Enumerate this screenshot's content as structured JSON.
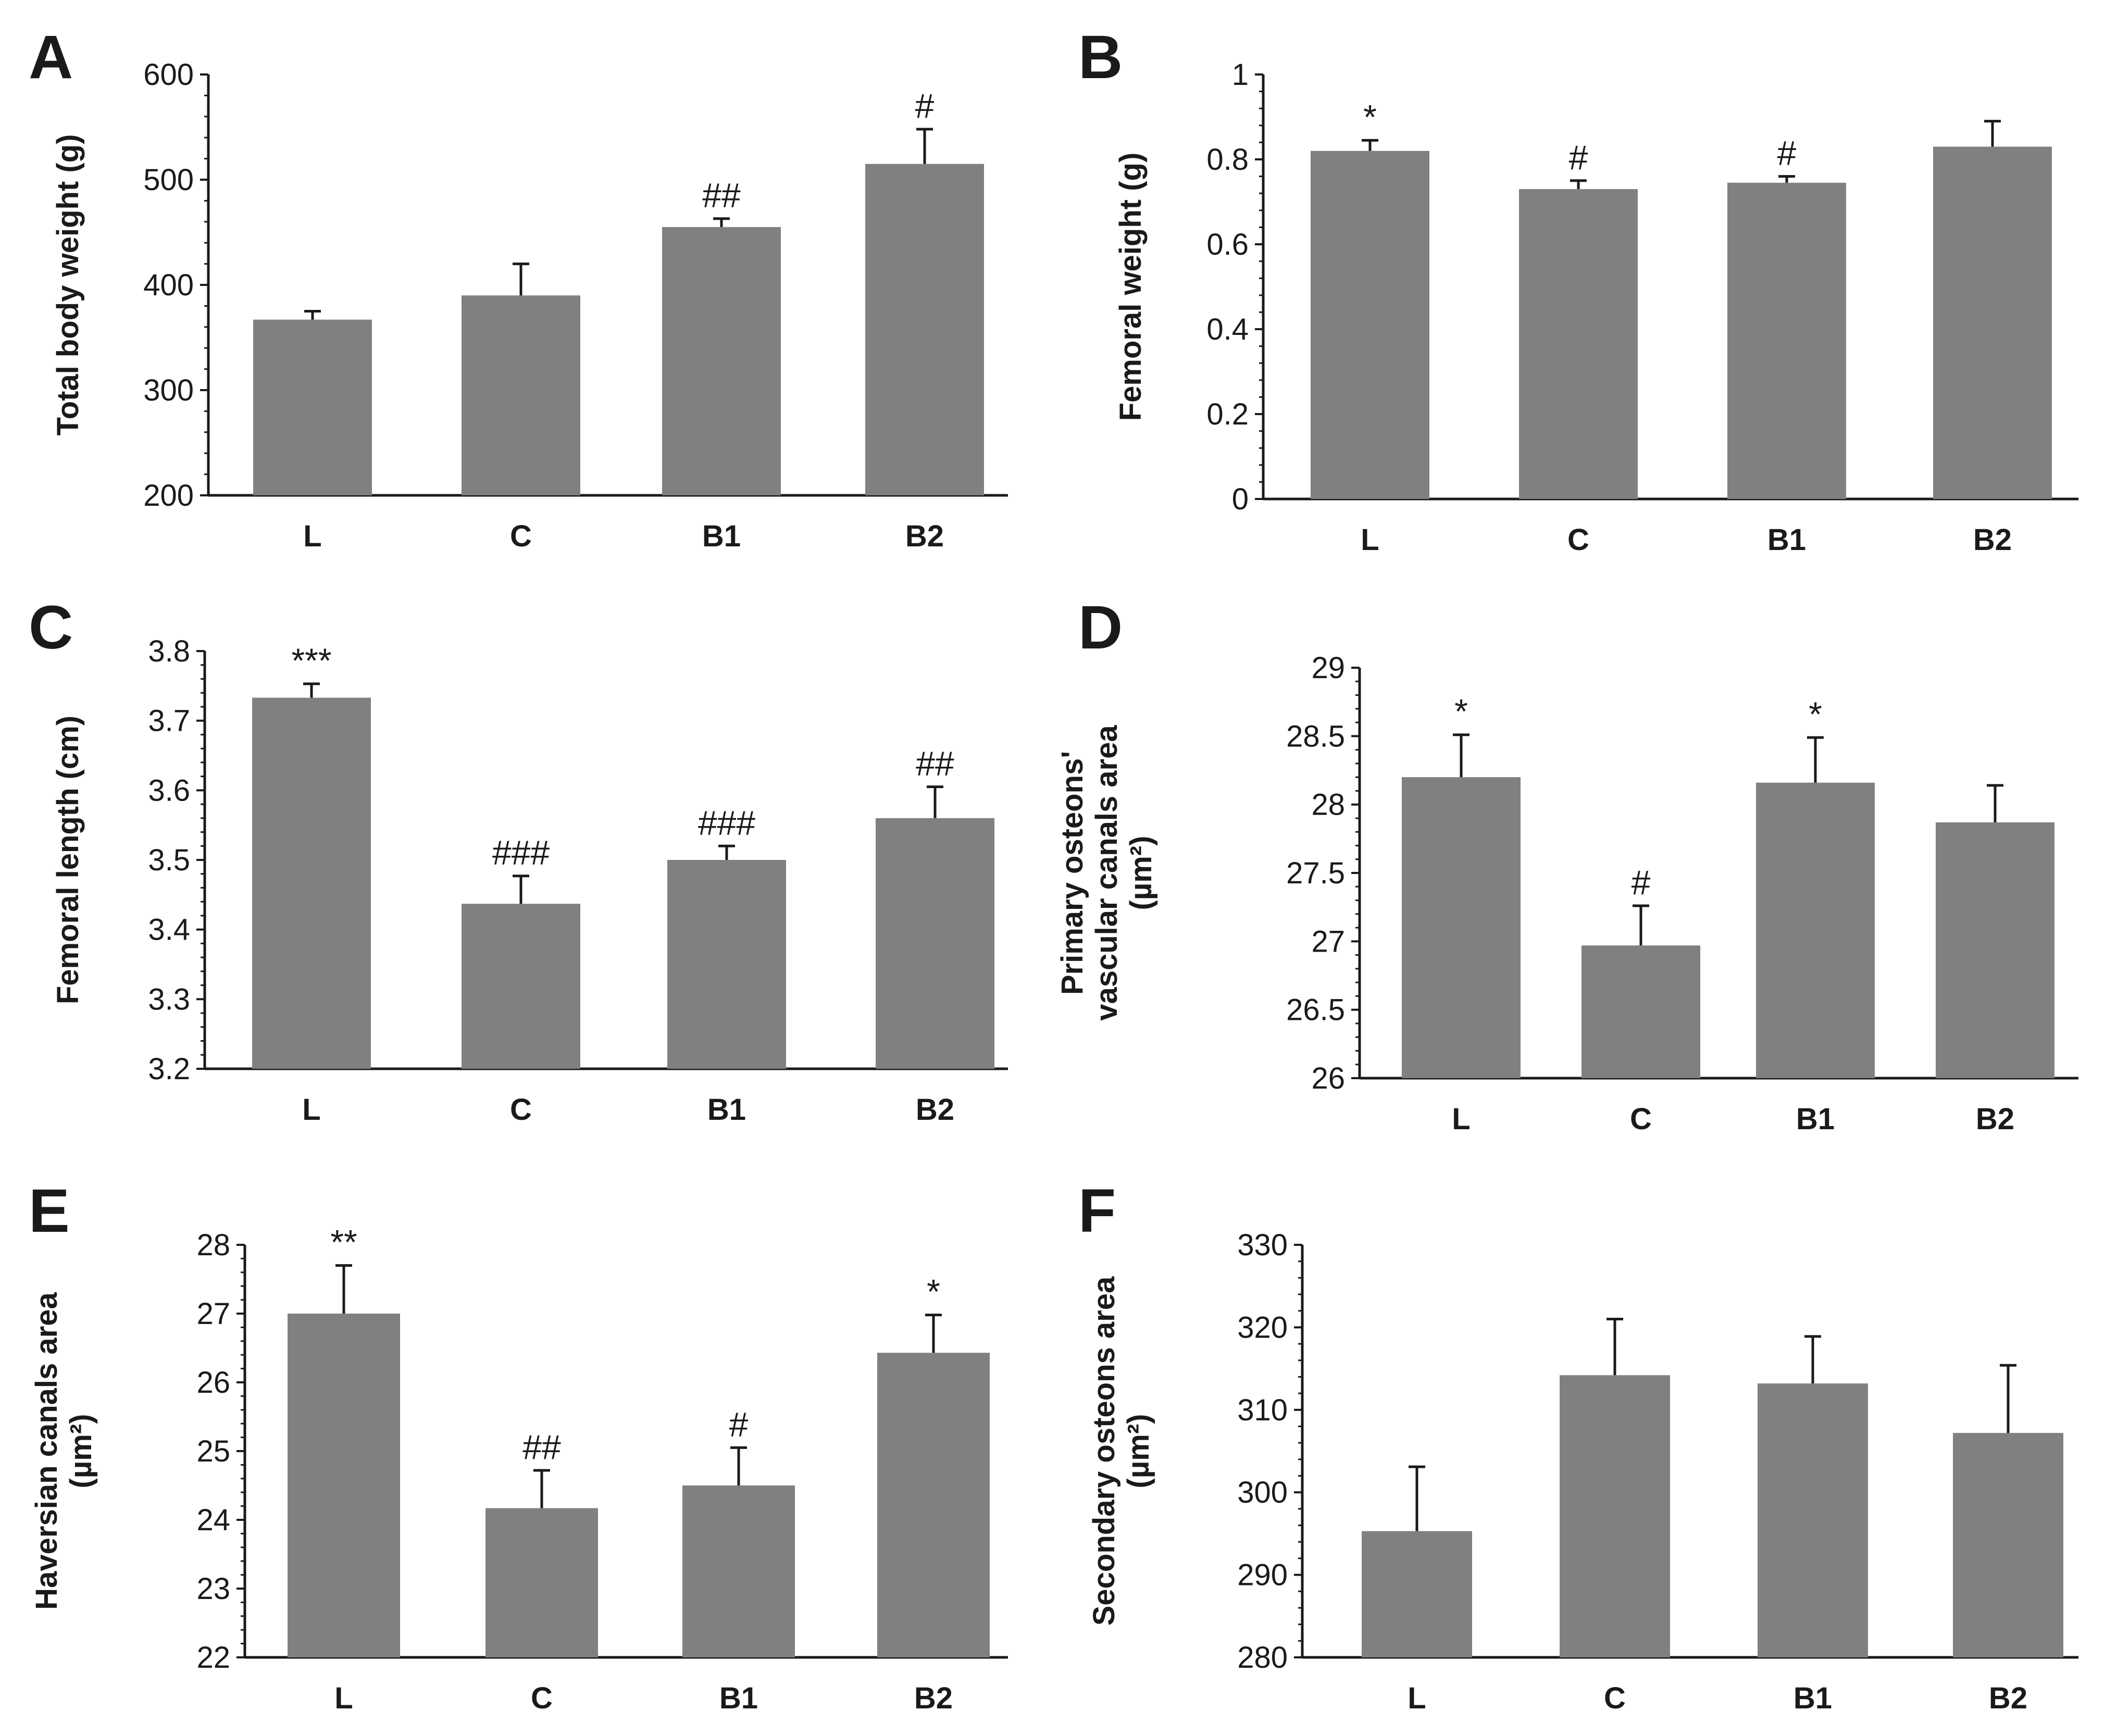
{
  "chart_data": [
    {
      "type": "bar",
      "panel": "A",
      "categories": [
        "L",
        "C",
        "B1",
        "B2"
      ],
      "values": [
        367,
        390,
        455,
        515
      ],
      "errors": [
        8,
        30,
        8,
        33
      ],
      "significance": [
        "",
        "",
        "##",
        "#"
      ],
      "ylabel": "Total body weight (g)",
      "ylabel_lines": [
        "Total body weight (g)"
      ],
      "ylim": [
        200,
        600
      ],
      "yticks": [
        200,
        300,
        400,
        500,
        600
      ],
      "ytick_labels": [
        "200",
        "300",
        "400",
        "500",
        "600"
      ]
    },
    {
      "type": "bar",
      "panel": "B",
      "categories": [
        "L",
        "C",
        "B1",
        "B2"
      ],
      "values": [
        0.82,
        0.73,
        0.745,
        0.83
      ],
      "errors": [
        0.025,
        0.02,
        0.015,
        0.06
      ],
      "significance": [
        "*",
        "#",
        "#",
        ""
      ],
      "ylabel": "Femoral weight (g)",
      "ylabel_lines": [
        "Femoral weight (g)"
      ],
      "ylim": [
        0,
        1
      ],
      "yticks": [
        0,
        0.2,
        0.4,
        0.6,
        0.8,
        1
      ],
      "ytick_labels": [
        "0",
        "0.2",
        "0.4",
        "0.6",
        "0.8",
        "1"
      ]
    },
    {
      "type": "bar",
      "panel": "C",
      "categories": [
        "L",
        "C",
        "B1",
        "B2"
      ],
      "values": [
        3.733,
        3.437,
        3.5,
        3.56
      ],
      "errors": [
        0.02,
        0.04,
        0.02,
        0.045
      ],
      "significance": [
        "***",
        "###",
        "###",
        "##"
      ],
      "ylabel": "Femoral length (cm)",
      "ylabel_lines": [
        "Femoral length (cm)"
      ],
      "ylim": [
        3.2,
        3.8
      ],
      "yticks": [
        3.2,
        3.3,
        3.4,
        3.5,
        3.6,
        3.7,
        3.8
      ],
      "ytick_labels": [
        "3.2",
        "3.3",
        "3.4",
        "3.5",
        "3.6",
        "3.7",
        "3.8"
      ]
    },
    {
      "type": "bar",
      "panel": "D",
      "categories": [
        "L",
        "C",
        "B1",
        "B2"
      ],
      "values": [
        28.2,
        26.97,
        28.16,
        27.87
      ],
      "errors": [
        0.31,
        0.29,
        0.33,
        0.27
      ],
      "significance": [
        "*",
        "#",
        "*",
        ""
      ],
      "ylabel": "Primary osteons' vascular canals area (µm²)",
      "ylabel_lines": [
        "Primary osteons'",
        "vascular canals area",
        "(µm²)"
      ],
      "ylim": [
        26,
        29
      ],
      "yticks": [
        26,
        26.5,
        27,
        27.5,
        28,
        28.5,
        29
      ],
      "ytick_labels": [
        "26",
        "26.5",
        "27",
        "27.5",
        "28",
        "28.5",
        "29"
      ]
    },
    {
      "type": "bar",
      "panel": "E",
      "categories": [
        "L",
        "C",
        "B1",
        "B2"
      ],
      "values": [
        27.0,
        24.17,
        24.5,
        26.43
      ],
      "errors": [
        0.7,
        0.55,
        0.55,
        0.55
      ],
      "significance": [
        "**",
        "##",
        "#",
        "*"
      ],
      "ylabel": "Haversian canals area (µm²)",
      "ylabel_lines": [
        "Haversian canals area",
        "(µm²)"
      ],
      "ylim": [
        22,
        28
      ],
      "yticks": [
        22,
        23,
        24,
        25,
        26,
        27,
        28
      ],
      "ytick_labels": [
        "22",
        "23",
        "24",
        "25",
        "26",
        "27",
        "28"
      ]
    },
    {
      "type": "bar",
      "panel": "F",
      "categories": [
        "L",
        "C",
        "B1",
        "B2"
      ],
      "values": [
        295.3,
        314.2,
        313.2,
        307.2
      ],
      "errors": [
        7.8,
        6.8,
        5.7,
        8.2
      ],
      "significance": [
        "",
        "",
        "",
        ""
      ],
      "ylabel": "Secondary osteons area (µm²)",
      "ylabel_lines": [
        "Secondary osteons area",
        "(µm²)"
      ],
      "ylim": [
        280,
        330
      ],
      "yticks": [
        280,
        290,
        300,
        310,
        320,
        330
      ],
      "ytick_labels": [
        "280",
        "290",
        "300",
        "310",
        "320",
        "330"
      ]
    }
  ]
}
